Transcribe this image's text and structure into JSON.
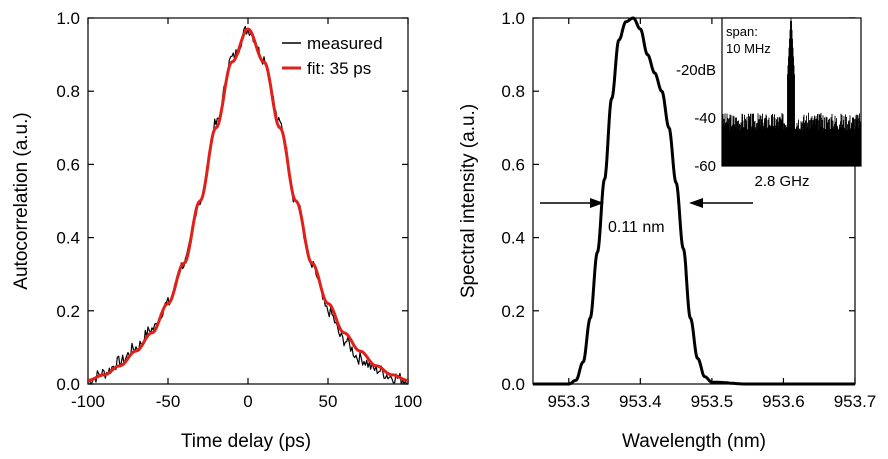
{
  "chart_data": [
    {
      "type": "line",
      "xlabel": "Time delay (ps)",
      "ylabel": "Autocorrelation (a.u.)",
      "xlim": [
        -100,
        100
      ],
      "ylim": [
        0,
        1.0
      ],
      "xticks": [
        -100,
        -50,
        0,
        50,
        100
      ],
      "xtick_labels": [
        "-100",
        "-50",
        "0",
        "50",
        "100"
      ],
      "yticks": [
        0,
        0.2,
        0.4,
        0.6,
        0.8,
        1.0
      ],
      "ytick_labels": [
        "0.0",
        "0.2",
        "0.4",
        "0.6",
        "0.8",
        "1.0"
      ],
      "legend_position": "top-right",
      "series": [
        {
          "name": "measured",
          "color": "#000000",
          "x": [
            -100,
            -90,
            -80,
            -70,
            -60,
            -50,
            -40,
            -30,
            -20,
            -10,
            0,
            10,
            20,
            30,
            40,
            50,
            60,
            70,
            80,
            90,
            100
          ],
          "values": [
            0.01,
            0.03,
            0.06,
            0.1,
            0.15,
            0.22,
            0.33,
            0.5,
            0.71,
            0.89,
            0.97,
            0.89,
            0.71,
            0.5,
            0.32,
            0.2,
            0.12,
            0.07,
            0.04,
            0.02,
            0.01
          ]
        },
        {
          "name": "fit: 35 ps",
          "color": "#e0201b",
          "x": [
            -100,
            -90,
            -80,
            -70,
            -60,
            -50,
            -40,
            -30,
            -20,
            -10,
            0,
            10,
            20,
            30,
            40,
            50,
            60,
            70,
            80,
            90,
            100
          ],
          "values": [
            0.01,
            0.025,
            0.05,
            0.09,
            0.14,
            0.22,
            0.33,
            0.5,
            0.7,
            0.88,
            0.97,
            0.88,
            0.7,
            0.5,
            0.33,
            0.22,
            0.14,
            0.09,
            0.05,
            0.025,
            0.01
          ]
        }
      ]
    },
    {
      "type": "line",
      "xlabel": "Wavelength (nm)",
      "ylabel": "Spectral intensity (a.u.)",
      "xlim": [
        953.25,
        953.7
      ],
      "ylim": [
        0,
        1.0
      ],
      "xticks": [
        953.3,
        953.4,
        953.5,
        953.6,
        953.7
      ],
      "xtick_labels": [
        "953.3",
        "953.4",
        "953.5",
        "953.6",
        "953.7"
      ],
      "yticks": [
        0,
        0.2,
        0.4,
        0.6,
        0.8,
        1.0
      ],
      "ytick_labels": [
        "0.0",
        "0.2",
        "0.4",
        "0.6",
        "0.8",
        "1.0"
      ],
      "annotation": "0.11 nm",
      "series": [
        {
          "color": "#000000",
          "x": [
            953.25,
            953.3,
            953.31,
            953.32,
            953.33,
            953.34,
            953.35,
            953.36,
            953.37,
            953.38,
            953.39,
            953.4,
            953.41,
            953.42,
            953.43,
            953.44,
            953.45,
            953.46,
            953.47,
            953.48,
            953.49,
            953.5,
            953.55,
            953.7
          ],
          "values": [
            0.0,
            0.0,
            0.01,
            0.06,
            0.18,
            0.36,
            0.56,
            0.78,
            0.94,
            0.99,
            1.0,
            0.97,
            0.9,
            0.85,
            0.8,
            0.7,
            0.55,
            0.37,
            0.18,
            0.07,
            0.02,
            0.005,
            0.0,
            0.0
          ]
        }
      ],
      "inset": {
        "type": "line",
        "title": "span:",
        "subtitle": "10 MHz",
        "xlabel": "2.8 GHz",
        "ylim": [
          -60,
          -10
        ],
        "yticks": [
          -20,
          -40,
          -60
        ],
        "ytick_labels": [
          "-20dB",
          "-40",
          "-60"
        ],
        "noise_floor_db": -45,
        "peak_db": -8
      }
    }
  ]
}
